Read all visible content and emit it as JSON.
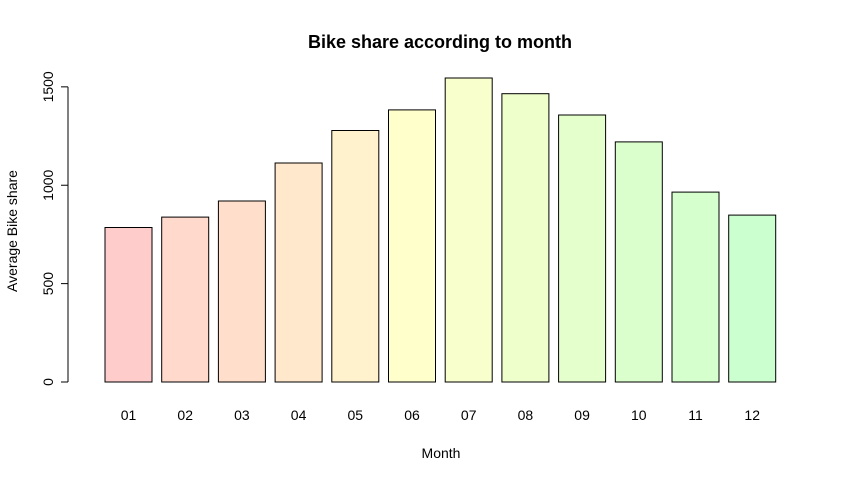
{
  "chart_data": {
    "type": "bar",
    "title": "Bike share according to month",
    "xlabel": "Month",
    "ylabel": "Average Bike share",
    "categories": [
      "01",
      "02",
      "03",
      "04",
      "05",
      "06",
      "07",
      "08",
      "09",
      "10",
      "11",
      "12"
    ],
    "values": [
      785,
      838,
      920,
      1113,
      1278,
      1383,
      1545,
      1465,
      1357,
      1220,
      965,
      848
    ],
    "ylim": [
      0,
      1545
    ],
    "yticks": [
      0,
      500,
      1000,
      1500
    ],
    "grid": false,
    "legend": "none",
    "colors": [
      "#FFCCCC",
      "#FFD9CC",
      "#FFDFCC",
      "#FFE8CC",
      "#FFF2CC",
      "#FFFFCC",
      "#F9FFCC",
      "#EEFFCC",
      "#E5FFCC",
      "#DBFFCC",
      "#D5FFCC",
      "#CCFFD0"
    ]
  }
}
